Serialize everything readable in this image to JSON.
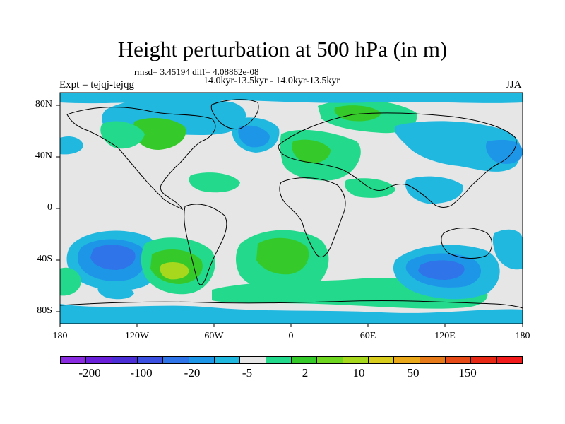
{
  "title": "Height perturbation at 500 hPa (in m)",
  "stats": "rmsd= 3.45194 diff= 4.08862e-08",
  "period": "14.0kyr-13.5kyr - 14.0kyr-13.5kyr",
  "experiment": "Expt = tejqj-tejqg",
  "season": "JJA",
  "y_axis_ticks": [
    "80N",
    "40N",
    "0",
    "40S",
    "80S"
  ],
  "x_axis_ticks": [
    "180",
    "120W",
    "60W",
    "0",
    "60E",
    "120E",
    "180"
  ],
  "colorbar": {
    "colors": [
      "#8a2be2",
      "#6a1fd9",
      "#4c2ed6",
      "#3b4fe0",
      "#2f74e8",
      "#1e96e8",
      "#21b8e0",
      "#e6e6e6",
      "#22d98c",
      "#36c92a",
      "#6ed61f",
      "#a8d81e",
      "#d8cc1c",
      "#e8a81a",
      "#e67a18",
      "#e64a16",
      "#e62814",
      "#f21a1a"
    ],
    "labels": [
      "-200",
      "-100",
      "-20",
      "-5",
      "2",
      "10",
      "50",
      "150"
    ]
  },
  "legend_colors": {
    "neutral": "#e6e6e6",
    "light_blue": "#21b8e0",
    "mid_blue": "#1e96e8",
    "dark_blue": "#2f74e8",
    "light_green": "#22d98c",
    "green": "#36c92a",
    "yellow_green": "#a8d81e"
  }
}
